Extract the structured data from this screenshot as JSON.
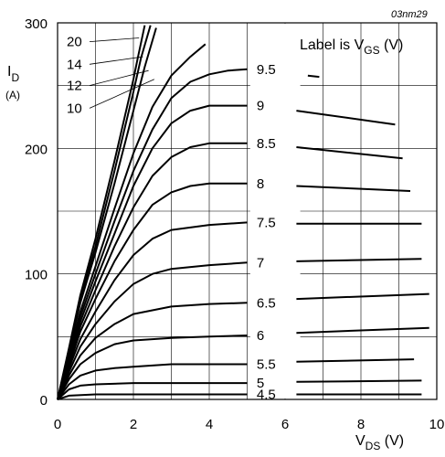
{
  "chart_data": {
    "type": "line",
    "code": "03nm29",
    "annotation": "Label is V",
    "annotation_sub": "GS",
    "annotation_unit": " (V)",
    "ylabel_main": "I",
    "ylabel_sub": "D",
    "ylabel_unit": "(A)",
    "xlabel_main": "V",
    "xlabel_sub": "DS",
    "xlabel_unit": " (V)",
    "xlim": [
      0,
      10
    ],
    "ylim": [
      0,
      300
    ],
    "xticks": [
      "0",
      "2",
      "4",
      "6",
      "8",
      "10"
    ],
    "yticks": [
      "0",
      "100",
      "200",
      "300"
    ],
    "grid": true,
    "series": [
      {
        "name": "4.5",
        "x": [
          0,
          0.3,
          1,
          2,
          3,
          4,
          5
        ],
        "y": [
          0,
          3,
          4,
          4,
          4,
          4,
          4
        ],
        "x2": [
          6.3,
          9.6
        ],
        "y2": [
          4,
          4
        ]
      },
      {
        "name": "5",
        "x": [
          0,
          0.3,
          0.6,
          1,
          2,
          3,
          4,
          5
        ],
        "y": [
          0,
          8,
          11,
          12,
          13,
          13,
          13,
          13
        ],
        "x2": [
          6.3,
          9.6
        ],
        "y2": [
          14,
          15
        ]
      },
      {
        "name": "5.5",
        "x": [
          0,
          0.3,
          0.6,
          1,
          1.5,
          2,
          3,
          4,
          5
        ],
        "y": [
          0,
          12,
          19,
          23,
          25,
          26,
          28,
          28,
          28
        ],
        "x2": [
          6.3,
          9.4
        ],
        "y2": [
          30,
          32
        ]
      },
      {
        "name": "6",
        "x": [
          0,
          0.3,
          0.6,
          1,
          1.5,
          2,
          3,
          4,
          5
        ],
        "y": [
          0,
          16,
          28,
          37,
          44,
          47,
          49,
          50,
          51
        ],
        "x2": [
          6.3,
          9.8
        ],
        "y2": [
          53,
          57
        ]
      },
      {
        "name": "6.5",
        "x": [
          0,
          0.3,
          0.6,
          1,
          1.5,
          2,
          3,
          4,
          5
        ],
        "y": [
          0,
          19,
          35,
          49,
          60,
          68,
          74,
          76,
          77
        ],
        "x2": [
          6.3,
          9.8
        ],
        "y2": [
          80,
          84
        ]
      },
      {
        "name": "7",
        "x": [
          0,
          0.3,
          0.6,
          1,
          1.5,
          2,
          2.5,
          3,
          4,
          5
        ],
        "y": [
          0,
          22,
          42,
          60,
          78,
          92,
          100,
          104,
          107,
          109
        ],
        "x2": [
          6.3,
          9.6
        ],
        "y2": [
          110,
          112
        ]
      },
      {
        "name": "7.5",
        "x": [
          0,
          0.3,
          0.6,
          1,
          1.5,
          2,
          2.5,
          3,
          4,
          5
        ],
        "y": [
          0,
          25,
          48,
          70,
          95,
          115,
          128,
          135,
          139,
          141
        ],
        "x2": [
          6.3,
          9.6
        ],
        "y2": [
          140,
          140
        ]
      },
      {
        "name": "8",
        "x": [
          0,
          0.3,
          0.6,
          1,
          1.5,
          2,
          2.5,
          3,
          3.5,
          4,
          5
        ],
        "y": [
          0,
          27,
          54,
          80,
          110,
          135,
          155,
          165,
          170,
          172,
          172
        ],
        "x2": [
          6.3,
          9.3
        ],
        "y2": [
          170,
          166
        ]
      },
      {
        "name": "8.5",
        "x": [
          0,
          0.3,
          0.6,
          1,
          1.5,
          2,
          2.5,
          3,
          3.5,
          4,
          5
        ],
        "y": [
          0,
          29,
          58,
          87,
          122,
          153,
          178,
          193,
          201,
          204,
          204
        ],
        "x2": [
          6.3,
          9.1
        ],
        "y2": [
          201,
          192
        ]
      },
      {
        "name": "9",
        "x": [
          0,
          0.3,
          0.6,
          1,
          1.5,
          2,
          2.5,
          3,
          3.5,
          4,
          5
        ],
        "y": [
          0,
          31,
          62,
          94,
          132,
          170,
          200,
          220,
          230,
          234,
          234
        ],
        "x2": [
          6.3,
          8.9
        ],
        "y2": [
          230,
          219
        ]
      },
      {
        "name": "9.5",
        "x": [
          0,
          0.3,
          0.6,
          1,
          1.5,
          2,
          2.5,
          3,
          3.5,
          4,
          4.5,
          5
        ],
        "y": [
          0,
          33,
          66,
          100,
          142,
          182,
          215,
          240,
          253,
          259,
          262,
          263
        ],
        "x2": [
          6.6,
          6.9
        ],
        "y2": [
          258,
          257
        ]
      },
      {
        "name": "10",
        "x": [
          0,
          0.3,
          0.6,
          1,
          1.5,
          2,
          2.5,
          3,
          3.5,
          3.9
        ],
        "y": [
          0,
          35,
          70,
          106,
          152,
          196,
          233,
          258,
          273,
          283
        ]
      },
      {
        "name": "12",
        "x": [
          0,
          0.3,
          0.6,
          1,
          1.5,
          2,
          2.3,
          2.6
        ],
        "y": [
          0,
          38,
          77,
          117,
          172,
          230,
          265,
          296
        ]
      },
      {
        "name": "14",
        "x": [
          0,
          0.3,
          0.6,
          1,
          1.5,
          2,
          2.2,
          2.45
        ],
        "y": [
          0,
          39,
          80,
          122,
          182,
          245,
          272,
          298
        ]
      },
      {
        "name": "20",
        "x": [
          0,
          0.3,
          0.6,
          1,
          1.5,
          2,
          2.1,
          2.3
        ],
        "y": [
          0,
          41,
          83,
          128,
          190,
          255,
          270,
          298
        ]
      }
    ]
  }
}
